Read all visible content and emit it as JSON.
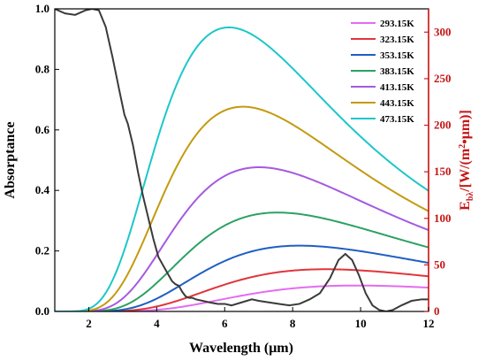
{
  "chart_data": {
    "type": "line",
    "x_label": "Wavelength (μm)",
    "y_left_label": "Absorptance",
    "y_right_label_main": "E",
    "y_right_label_sub": "bλ",
    "y_right_label_unit": "/[W/(m",
    "y_right_label_sup": "2",
    "y_right_label_end": "•μm)]",
    "x_range": [
      1,
      12
    ],
    "y_left_range": [
      0,
      1.0
    ],
    "y_right_range": [
      0,
      325
    ],
    "x_ticks": [
      2,
      4,
      6,
      8,
      10,
      12
    ],
    "y_left_ticks": [
      0.0,
      0.2,
      0.4,
      0.6,
      0.8,
      1.0
    ],
    "y_right_ticks": [
      0,
      50,
      100,
      150,
      200,
      250,
      300
    ],
    "x_tick_labels": [
      "2",
      "4",
      "6",
      "8",
      "10",
      "12"
    ],
    "y_left_tick_labels": [
      "0.0",
      "0.2",
      "0.4",
      "0.6",
      "0.8",
      "1.0"
    ],
    "y_right_tick_labels": [
      "0",
      "50",
      "100",
      "150",
      "200",
      "250",
      "300"
    ],
    "legend_position": "top-right",
    "absorptance": {
      "color": "#3a3a3a",
      "points": [
        [
          1.0,
          1.0
        ],
        [
          1.3,
          0.985
        ],
        [
          1.6,
          0.98
        ],
        [
          1.9,
          0.995
        ],
        [
          2.1,
          1.0
        ],
        [
          2.3,
          0.995
        ],
        [
          2.5,
          0.94
        ],
        [
          2.7,
          0.84
        ],
        [
          2.9,
          0.73
        ],
        [
          3.05,
          0.65
        ],
        [
          3.15,
          0.62
        ],
        [
          3.3,
          0.55
        ],
        [
          3.45,
          0.46
        ],
        [
          3.6,
          0.38
        ],
        [
          3.75,
          0.31
        ],
        [
          3.9,
          0.24
        ],
        [
          4.05,
          0.18
        ],
        [
          4.2,
          0.15
        ],
        [
          4.35,
          0.12
        ],
        [
          4.45,
          0.1
        ],
        [
          4.55,
          0.09
        ],
        [
          4.65,
          0.085
        ],
        [
          4.75,
          0.065
        ],
        [
          4.85,
          0.05
        ],
        [
          4.95,
          0.045
        ],
        [
          5.05,
          0.045
        ],
        [
          5.15,
          0.04
        ],
        [
          5.35,
          0.035
        ],
        [
          5.55,
          0.03
        ],
        [
          5.8,
          0.025
        ],
        [
          6.0,
          0.025
        ],
        [
          6.2,
          0.02
        ],
        [
          6.5,
          0.03
        ],
        [
          6.8,
          0.04
        ],
        [
          7.0,
          0.035
        ],
        [
          7.3,
          0.03
        ],
        [
          7.6,
          0.025
        ],
        [
          7.9,
          0.02
        ],
        [
          8.2,
          0.025
        ],
        [
          8.5,
          0.04
        ],
        [
          8.8,
          0.06
        ],
        [
          9.1,
          0.11
        ],
        [
          9.35,
          0.17
        ],
        [
          9.55,
          0.19
        ],
        [
          9.75,
          0.17
        ],
        [
          9.95,
          0.12
        ],
        [
          10.15,
          0.06
        ],
        [
          10.35,
          0.02
        ],
        [
          10.55,
          0.005
        ],
        [
          10.75,
          0.0
        ],
        [
          10.95,
          0.005
        ],
        [
          11.2,
          0.02
        ],
        [
          11.5,
          0.035
        ],
        [
          11.8,
          0.04
        ],
        [
          12.0,
          0.04
        ]
      ]
    },
    "series": [
      {
        "name": "293.15K",
        "color": "#e36cf1",
        "temperature": 293.15
      },
      {
        "name": "323.15K",
        "color": "#e1343a",
        "temperature": 323.15
      },
      {
        "name": "353.15K",
        "color": "#1e5fc4",
        "temperature": 353.15
      },
      {
        "name": "383.15K",
        "color": "#2ca165",
        "temperature": 383.15
      },
      {
        "name": "413.15K",
        "color": "#a55ae0",
        "temperature": 413.15
      },
      {
        "name": "443.15K",
        "color": "#c49a10",
        "temperature": 443.15
      },
      {
        "name": "473.15K",
        "color": "#1cc7c9",
        "temperature": 473.15
      }
    ]
  }
}
